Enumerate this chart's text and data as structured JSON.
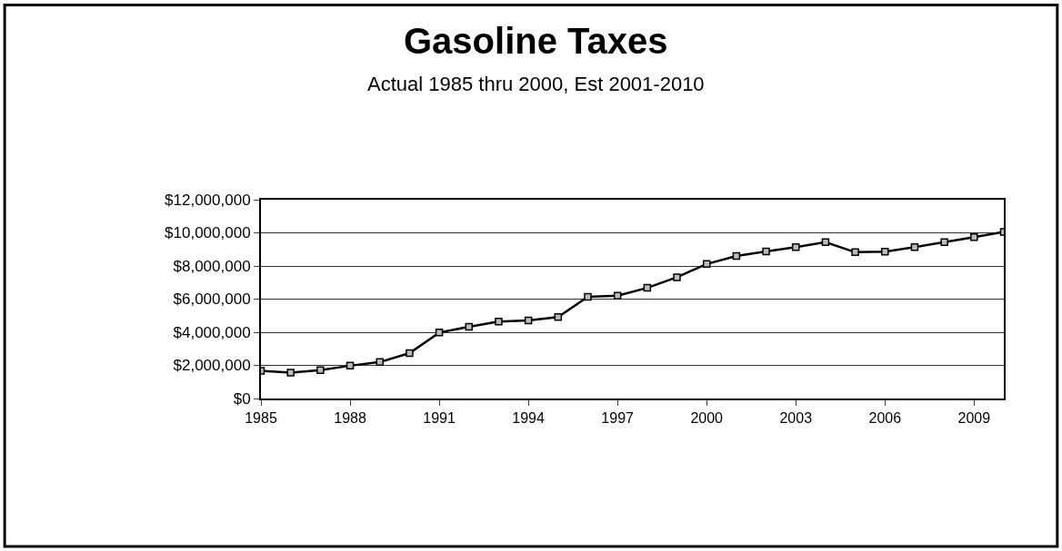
{
  "chart_data": {
    "type": "line",
    "title": "Gasoline Taxes",
    "subtitle": "Actual 1985 thru 2000, Est 2001-2010",
    "x": [
      1985,
      1986,
      1987,
      1988,
      1989,
      1990,
      1991,
      1992,
      1993,
      1994,
      1995,
      1996,
      1997,
      1998,
      1999,
      2000,
      2001,
      2002,
      2003,
      2004,
      2005,
      2006,
      2007,
      2008,
      2009,
      2010
    ],
    "series": [
      {
        "color": "#000000",
        "values": [
          1670000,
          1560000,
          1710000,
          1980000,
          2200000,
          2740000,
          3980000,
          4330000,
          4640000,
          4710000,
          4920000,
          6140000,
          6210000,
          6680000,
          7320000,
          8120000,
          8600000,
          8880000,
          9140000,
          9440000,
          8830000,
          8860000,
          9140000,
          9440000,
          9740000,
          10050000
        ]
      }
    ],
    "xlim": [
      1985,
      2010
    ],
    "xticks": [
      1985,
      1988,
      1991,
      1994,
      1997,
      2000,
      2003,
      2006,
      2009
    ],
    "ylim": [
      0,
      12000000
    ],
    "yticks": [
      {
        "value": 0,
        "label": "$0"
      },
      {
        "value": 2000000,
        "label": "$2,000,000"
      },
      {
        "value": 4000000,
        "label": "$4,000,000"
      },
      {
        "value": 6000000,
        "label": "$6,000,000"
      },
      {
        "value": 8000000,
        "label": "$8,000,000"
      },
      {
        "value": 10000000,
        "label": "$10,000,000"
      },
      {
        "value": 12000000,
        "label": "$12,000,000"
      }
    ],
    "grid": "y",
    "marker": "square",
    "line_style": "solid"
  }
}
